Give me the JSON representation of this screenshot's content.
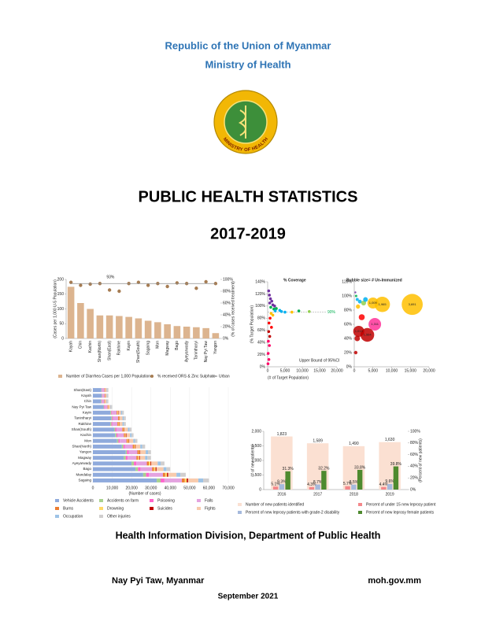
{
  "header": {
    "line1": "Republic of the Union of Myanmar",
    "line2": "Ministry of Health"
  },
  "logo": {
    "text": "MINISTRY OF HEALTH"
  },
  "title": "PUBLIC HEALTH STATISTICS",
  "years": "2017-2019",
  "chart_data": [
    {
      "type": "bar",
      "categories": [
        "Kayah",
        "Chin",
        "Kachin",
        "Shan(North)",
        "Shan(East)",
        "Rakhine",
        "Kayin",
        "Shan(South)",
        "Sagaing",
        "Mon",
        "Magway",
        "Bago",
        "Ayeyarwady",
        "Tanintharyi",
        "Nay Pyi Taw",
        "Yangon"
      ],
      "series": [
        {
          "name": "Number of Diarrhea Cases per 1,000 Population",
          "type": "bar",
          "color": "#dcb48f",
          "values": [
            175,
            120,
            100,
            78,
            78,
            76,
            73,
            68,
            60,
            55,
            48,
            42,
            40,
            38,
            35,
            18
          ]
        },
        {
          "name": "% received ORS & Zinc Sulphate",
          "type": "scatter",
          "axis": "y2",
          "color": "#a67c52",
          "values": [
            95,
            90,
            92,
            93,
            82,
            80,
            93,
            95,
            90,
            93,
            88,
            94,
            93,
            85,
            96,
            93
          ]
        },
        {
          "name": "Urban",
          "type": "line",
          "axis": "y2",
          "color": "#8c8c8c",
          "values": [
            93,
            93,
            93,
            93,
            93,
            93,
            93,
            93,
            93,
            93,
            93,
            93,
            93,
            93,
            93,
            93
          ]
        }
      ],
      "annotation": "93%",
      "ylabel": "(Cases per 1,000 U-5 Population)",
      "y2label": "(% of cases received treatment)",
      "ylim": [
        0,
        200
      ],
      "yticks": [
        0,
        50,
        100,
        150,
        200
      ],
      "y2lim": [
        0,
        100
      ],
      "y2ticks": [
        {
          "value": 0,
          "label": "0%"
        },
        {
          "value": 20,
          "label": "20%"
        },
        {
          "value": 40,
          "label": "40%"
        },
        {
          "value": 60,
          "label": "60%"
        },
        {
          "value": 80,
          "label": "80%"
        },
        {
          "value": 100,
          "label": "100%"
        }
      ]
    },
    {
      "type": "scatter",
      "title": "% Coverage",
      "xlabel": "(# of Target Population)",
      "ylabel": "(% Target Population)",
      "x": [
        300,
        500,
        800,
        1200,
        600,
        1500,
        2000,
        900,
        2500,
        1800,
        3500,
        4000,
        5000,
        2200,
        1000,
        7000,
        1500,
        700,
        400,
        1100,
        300,
        600,
        200,
        500,
        150,
        350,
        100,
        9000,
        12000
      ],
      "values": [
        125,
        118,
        112,
        108,
        105,
        102,
        100,
        98,
        96,
        95,
        93,
        91,
        90,
        92,
        88,
        90,
        85,
        80,
        72,
        65,
        58,
        50,
        42,
        35,
        22,
        12,
        5,
        92,
        91
      ],
      "colors": [
        "#7030a0",
        "#7030a0",
        "#7030a0",
        "#7030a0",
        "#7030a0",
        "#7030a0",
        "#7030a0",
        "#00b050",
        "#00b050",
        "#00b050",
        "#00b0f0",
        "#00b0f0",
        "#00b0f0",
        "#00b0f0",
        "#ffc000",
        "#ffc000",
        "#ffc000",
        "#ff0000",
        "#ff0000",
        "#ff0000",
        "#c00000",
        "#c00000",
        "#ff0066",
        "#ff0066",
        "#ff0066",
        "#ff0066",
        "#ff0066",
        "#00b050",
        "#92d050"
      ],
      "reference": {
        "label": "90%",
        "value": 90,
        "color": "#00b050"
      },
      "annotation": "Upper Bound of 95%CI",
      "xlim": [
        0,
        20000
      ],
      "xticks": [
        0,
        {
          "value": 5000,
          "label": "5,000"
        },
        {
          "value": 10000,
          "label": "10,000"
        },
        {
          "value": 15000,
          "label": "15,000"
        },
        {
          "value": 20000,
          "label": "20,000"
        }
      ],
      "ylim": [
        0,
        140
      ],
      "yticks": [
        {
          "value": 0,
          "label": "0%"
        },
        {
          "value": 20,
          "label": "20%"
        },
        {
          "value": 40,
          "label": "40%"
        },
        {
          "value": 60,
          "label": "60%"
        },
        {
          "value": 80,
          "label": "80%"
        },
        {
          "value": 100,
          "label": "100%"
        },
        {
          "value": 120,
          "label": "120%"
        },
        {
          "value": 140,
          "label": "140%"
        }
      ]
    },
    {
      "type": "bubble",
      "title": "Bubble size= # Un-Immunized",
      "x": [
        15500,
        7500,
        5000,
        5500,
        3500,
        1200,
        500,
        800,
        1500,
        2500,
        300,
        1000,
        2000,
        800,
        400,
        3000
      ],
      "values": [
        88,
        88,
        90,
        60,
        45,
        50,
        100,
        95,
        92,
        90,
        105,
        85,
        70,
        40,
        20,
        95
      ],
      "sizes": [
        3691,
        1965,
        1009,
        1311,
        1564,
        1013,
        50,
        80,
        120,
        200,
        30,
        150,
        300,
        250,
        100,
        180
      ],
      "size_labels": [
        "3,691",
        "1,965",
        "1,009",
        "1,311",
        "1,564",
        "1,013",
        null,
        null,
        null,
        null,
        null,
        null,
        null,
        null,
        null,
        null
      ],
      "colors": [
        "#ffc000",
        "#ffc000",
        "#ffc000",
        "#ff3399",
        "#c00000",
        "#c00000",
        "#00b050",
        "#00b0f0",
        "#00b0f0",
        "#92d050",
        "#7030a0",
        "#ffc000",
        "#ff0000",
        "#c00000",
        "#c00000",
        "#00b0f0"
      ],
      "xlim": [
        0,
        20000
      ],
      "xticks": [
        0,
        {
          "value": 5000,
          "label": "5,000"
        },
        {
          "value": 10000,
          "label": "10,000"
        },
        {
          "value": 15000,
          "label": "15,000"
        },
        {
          "value": 20000,
          "label": "20,000"
        }
      ],
      "ylim": [
        0,
        120
      ],
      "yticks": [
        {
          "value": 0,
          "label": "0%"
        },
        {
          "value": 20,
          "label": "20%"
        },
        {
          "value": 40,
          "label": "40%"
        },
        {
          "value": 60,
          "label": "60%"
        },
        {
          "value": 80,
          "label": "80%"
        },
        {
          "value": 100,
          "label": "100%"
        },
        {
          "value": 120,
          "label": "120%"
        }
      ]
    },
    {
      "type": "stacked_barh",
      "xlabel": "(Number of cases)",
      "categories": [
        "Shan(East)",
        "Kayah",
        "Chin",
        "Nay Pyi Taw",
        "Kayin",
        "Tanintharyi",
        "Rakhine",
        "Shan(South)",
        "Kachin",
        "Mon",
        "Shan(North)",
        "Yangon",
        "Magway",
        "Ayeyarwady",
        "Bago",
        "Mandalay",
        "Sagaing"
      ],
      "series": [
        {
          "name": "Vehicle Accidents",
          "color": "#8faadc",
          "values": [
            4400,
            4500,
            4200,
            5500,
            9000,
            9500,
            9000,
            11000,
            11500,
            12500,
            15000,
            17000,
            16000,
            20000,
            22000,
            26000,
            33000
          ]
        },
        {
          "name": "Accidents on farm",
          "color": "#a9d18e",
          "values": [
            200,
            250,
            300,
            300,
            500,
            500,
            600,
            600,
            700,
            700,
            800,
            600,
            1000,
            1200,
            1300,
            1500,
            2000
          ]
        },
        {
          "name": "Poisoning",
          "color": "#ff66cc",
          "values": [
            200,
            200,
            250,
            300,
            400,
            500,
            500,
            600,
            600,
            700,
            800,
            900,
            1000,
            1200,
            1300,
            1500,
            2000
          ]
        },
        {
          "name": "Falls",
          "color": "#e4a3e0",
          "values": [
            1200,
            1100,
            1200,
            1500,
            2400,
            2500,
            2600,
            3000,
            3200,
            3500,
            4000,
            4500,
            4500,
            5500,
            6000,
            7200,
            9000
          ]
        },
        {
          "name": "Burns",
          "color": "#ed7d31",
          "values": [
            200,
            200,
            200,
            300,
            400,
            400,
            500,
            500,
            600,
            600,
            700,
            800,
            800,
            1000,
            1000,
            1200,
            1500
          ]
        },
        {
          "name": "Drowning",
          "color": "#ffd966",
          "values": [
            150,
            150,
            150,
            200,
            300,
            300,
            400,
            400,
            400,
            500,
            500,
            400,
            600,
            900,
            800,
            900,
            1000
          ]
        },
        {
          "name": "Suicides",
          "color": "#c00000",
          "values": [
            100,
            100,
            100,
            100,
            200,
            200,
            200,
            200,
            300,
            300,
            300,
            300,
            400,
            400,
            500,
            600,
            700
          ]
        },
        {
          "name": "Fights",
          "color": "#f8cbad",
          "values": [
            700,
            650,
            700,
            900,
            1300,
            1400,
            1500,
            1800,
            1900,
            2100,
            2400,
            2800,
            2700,
            3300,
            3600,
            4300,
            5300
          ]
        },
        {
          "name": "Occupation",
          "color": "#9dc3e6",
          "values": [
            300,
            300,
            300,
            300,
            600,
            700,
            700,
            800,
            800,
            900,
            1000,
            1200,
            1200,
            1500,
            1500,
            2000,
            2500
          ]
        },
        {
          "name": "Other injuries",
          "color": "#d0cece",
          "values": [
            550,
            550,
            600,
            600,
            900,
            1000,
            1000,
            1100,
            1000,
            1200,
            1500,
            1500,
            1800,
            2000,
            2000,
            2800,
            3000
          ]
        }
      ],
      "xlim": [
        0,
        70000
      ],
      "xticks": [
        0,
        {
          "value": 10000,
          "label": "10,000"
        },
        {
          "value": 20000,
          "label": "20,000"
        },
        {
          "value": 30000,
          "label": "30,000"
        },
        {
          "value": 40000,
          "label": "40,000"
        },
        {
          "value": 50000,
          "label": "50,000"
        },
        {
          "value": 60000,
          "label": "60,000"
        },
        {
          "value": 70000,
          "label": "70,000"
        }
      ]
    },
    {
      "type": "bar",
      "categories": [
        "2016",
        "2017",
        "2018",
        "2019"
      ],
      "series": [
        {
          "name": "Number of new patients identified",
          "type": "bar",
          "color": "#fbe0d2",
          "values": [
            1823,
            1589,
            1490,
            1630
          ],
          "value_labels": [
            "1,823",
            "1,589",
            "1,490",
            "1,630"
          ]
        },
        {
          "name": "Percent of under 15 new leprosy patient",
          "type": "bar",
          "axis": "y2",
          "color": "#f4878a",
          "values": [
            5.1,
            4.3,
            5.7,
            4.4
          ],
          "value_labels": [
            "5.1%",
            "4.3%",
            "5.7%",
            "4.4%"
          ]
        },
        {
          "name": "Percent of new leprosy patients with grade-2 disability",
          "type": "bar",
          "axis": "y2",
          "color": "#a5b9dc",
          "values": [
            9.3,
            8.7,
            8.5,
            9.6
          ],
          "value_labels": [
            "9.3%",
            "8.7%",
            "8.5%",
            "9.6%"
          ]
        },
        {
          "name": "Percent of new leprosy female patients",
          "type": "bar",
          "axis": "y2",
          "color": "#4e8a2f",
          "values": [
            31.3,
            32.2,
            33.8,
            39.8
          ],
          "value_labels": [
            "31.3%",
            "32.2%",
            "33.8%",
            "39.8%"
          ]
        }
      ],
      "ylabel": "(# of new patients)",
      "y2label": "(Percent of new patients)",
      "ylim": [
        0,
        2000
      ],
      "yticks": [
        0,
        500,
        {
          "value": 1000,
          "label": "1,000"
        },
        {
          "value": 1500,
          "label": "1,500"
        },
        {
          "value": 2000,
          "label": "2,000"
        }
      ],
      "y2lim": [
        0,
        100
      ],
      "y2ticks": [
        {
          "value": 0,
          "label": "0%"
        },
        {
          "value": 20,
          "label": "20%"
        },
        {
          "value": 40,
          "label": "40%"
        },
        {
          "value": 60,
          "label": "60%"
        },
        {
          "value": 80,
          "label": "80%"
        },
        {
          "value": 100,
          "label": "100%"
        }
      ]
    }
  ],
  "footer": {
    "division": "Health Information Division, Department of Public Health",
    "place": "Nay Pyi Taw, Myanmar",
    "website": "moh.gov.mm",
    "date": "September 2021"
  }
}
